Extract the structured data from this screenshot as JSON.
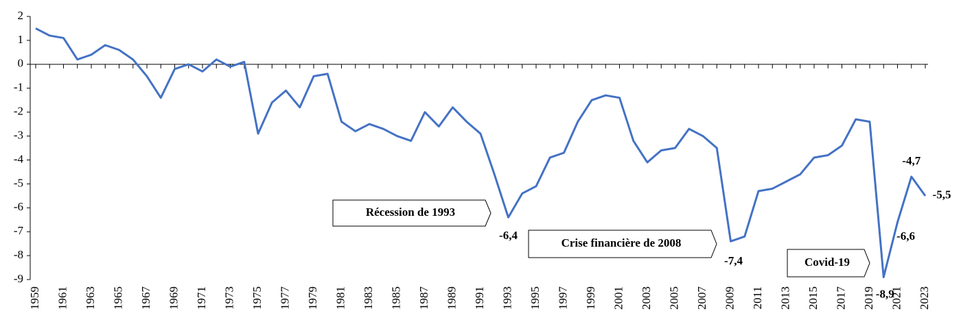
{
  "chart_data": {
    "type": "line",
    "x": [
      1959,
      1960,
      1961,
      1962,
      1963,
      1964,
      1965,
      1966,
      1967,
      1968,
      1969,
      1970,
      1971,
      1972,
      1973,
      1974,
      1975,
      1976,
      1977,
      1978,
      1979,
      1980,
      1981,
      1982,
      1983,
      1984,
      1985,
      1986,
      1987,
      1988,
      1989,
      1990,
      1991,
      1992,
      1993,
      1994,
      1995,
      1996,
      1997,
      1998,
      1999,
      2000,
      2001,
      2002,
      2003,
      2004,
      2005,
      2006,
      2007,
      2008,
      2009,
      2010,
      2011,
      2012,
      2013,
      2014,
      2015,
      2016,
      2017,
      2018,
      2019,
      2020,
      2021,
      2022,
      2023
    ],
    "series": [
      {
        "color": "#4472c4",
        "values": [
          1.5,
          1.2,
          1.1,
          0.2,
          0.4,
          0.8,
          0.6,
          0.2,
          -0.5,
          -1.4,
          -0.2,
          0.0,
          -0.3,
          0.2,
          -0.1,
          0.1,
          -2.9,
          -1.6,
          -1.1,
          -1.8,
          -0.5,
          -0.4,
          -2.4,
          -2.8,
          -2.5,
          -2.7,
          -3.0,
          -3.2,
          -2.0,
          -2.6,
          -1.8,
          -2.4,
          -2.9,
          -4.6,
          -6.4,
          -5.4,
          -5.1,
          -3.9,
          -3.7,
          -2.4,
          -1.5,
          -1.3,
          -1.4,
          -3.2,
          -4.1,
          -3.6,
          -3.5,
          -2.7,
          -3.0,
          -3.5,
          -7.4,
          -7.2,
          -5.3,
          -5.2,
          -4.9,
          -4.6,
          -3.9,
          -3.8,
          -3.4,
          -2.3,
          -2.4,
          -8.9,
          -6.6,
          -4.7,
          -5.5
        ],
        "value_labels": [
          null,
          null,
          null,
          null,
          null,
          null,
          null,
          null,
          null,
          null,
          null,
          null,
          null,
          null,
          null,
          null,
          null,
          null,
          null,
          null,
          null,
          null,
          null,
          null,
          null,
          null,
          null,
          null,
          null,
          null,
          null,
          null,
          null,
          null,
          "-6,4",
          null,
          null,
          null,
          null,
          null,
          null,
          null,
          null,
          null,
          null,
          null,
          null,
          null,
          null,
          null,
          "-7,4",
          null,
          null,
          null,
          null,
          null,
          null,
          null,
          null,
          null,
          null,
          "-8,9",
          "-6,6",
          "-4,7",
          "-5,5"
        ]
      }
    ],
    "xlim": [
      1959,
      2023
    ],
    "xticks": [
      1959,
      1961,
      1963,
      1965,
      1967,
      1969,
      1971,
      1973,
      1975,
      1977,
      1979,
      1981,
      1983,
      1985,
      1987,
      1989,
      1991,
      1993,
      1995,
      1997,
      1999,
      2001,
      2003,
      2005,
      2007,
      2009,
      2011,
      2013,
      2015,
      2017,
      2019,
      2021,
      2023
    ],
    "ylim": [
      -9,
      2
    ],
    "yticks": [
      -9,
      -8,
      -7,
      -6,
      -5,
      -4,
      -3,
      -2,
      -1,
      0,
      1,
      2
    ],
    "annotations": [
      "Récession de 1993",
      "Crise financière de 2008",
      "Covid-19"
    ]
  }
}
